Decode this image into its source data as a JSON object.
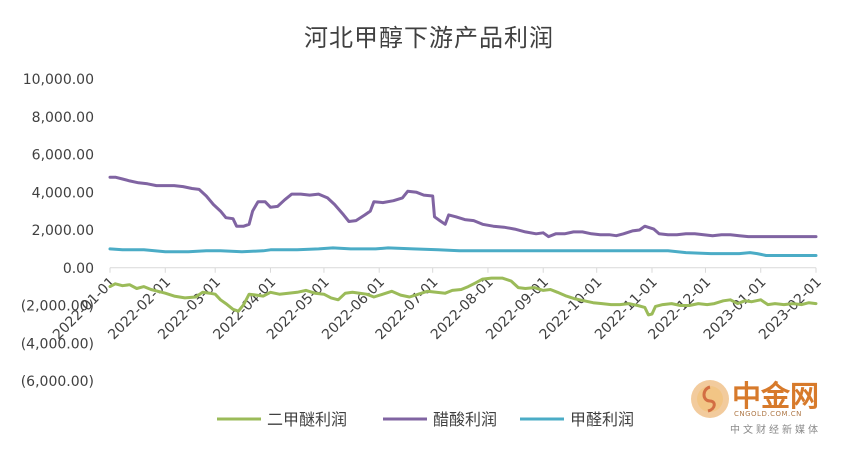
{
  "chart_data": {
    "type": "line",
    "title": "河北甲醇下游产品利润",
    "xlabel": "",
    "ylabel": "",
    "ylim": [
      -6000,
      10000
    ],
    "yticks": [
      10000,
      8000,
      6000,
      4000,
      2000,
      0,
      -2000,
      -4000,
      -6000
    ],
    "ytick_labels": [
      "10,000.00",
      "8,000.00",
      "6,000.00",
      "4,000.00",
      "2,000.00",
      "0.00",
      "(2,000.00)",
      "(4,000.00)",
      "(6,000.00)"
    ],
    "xlim": [
      "2022-01-01",
      "2023-02-01"
    ],
    "xtick_labels": [
      "2022-01-01",
      "2022-02-01",
      "2022-03-01",
      "2022-04-01",
      "2022-05-01",
      "2022-06-01",
      "2022-07-01",
      "2022-08-01",
      "2022-09-01",
      "2022-10-01",
      "2022-11-01",
      "2022-12-01",
      "2023-01-01",
      "2023-02-01"
    ],
    "grid": false,
    "legend": "bottom",
    "series": [
      {
        "name": "二甲醚利润",
        "color": "#9bbb59",
        "points": [
          [
            "2022-01-01",
            -1000
          ],
          [
            "2022-01-04",
            -850
          ],
          [
            "2022-01-08",
            -950
          ],
          [
            "2022-01-12",
            -900
          ],
          [
            "2022-01-16",
            -1100
          ],
          [
            "2022-01-20",
            -1000
          ],
          [
            "2022-01-24",
            -1150
          ],
          [
            "2022-01-28",
            -1250
          ],
          [
            "2022-02-01",
            -1350
          ],
          [
            "2022-02-06",
            -1500
          ],
          [
            "2022-02-12",
            -1600
          ],
          [
            "2022-02-18",
            -1550
          ],
          [
            "2022-02-22",
            -1300
          ],
          [
            "2022-02-26",
            -1350
          ],
          [
            "2022-03-01",
            -1400
          ],
          [
            "2022-03-04",
            -1700
          ],
          [
            "2022-03-07",
            -1900
          ],
          [
            "2022-03-11",
            -2200
          ],
          [
            "2022-03-14",
            -2300
          ],
          [
            "2022-03-17",
            -1950
          ],
          [
            "2022-03-20",
            -1400
          ],
          [
            "2022-03-24",
            -1450
          ],
          [
            "2022-03-28",
            -1500
          ],
          [
            "2022-04-01",
            -1300
          ],
          [
            "2022-04-06",
            -1400
          ],
          [
            "2022-04-11",
            -1350
          ],
          [
            "2022-04-16",
            -1300
          ],
          [
            "2022-04-21",
            -1200
          ],
          [
            "2022-04-26",
            -1350
          ],
          [
            "2022-05-01",
            -1400
          ],
          [
            "2022-05-05",
            -1600
          ],
          [
            "2022-05-09",
            -1700
          ],
          [
            "2022-05-13",
            -1350
          ],
          [
            "2022-05-17",
            -1300
          ],
          [
            "2022-05-21",
            -1350
          ],
          [
            "2022-05-25",
            -1400
          ],
          [
            "2022-05-29",
            -1550
          ],
          [
            "2022-06-03",
            -1400
          ],
          [
            "2022-06-08",
            -1250
          ],
          [
            "2022-06-13",
            -1450
          ],
          [
            "2022-06-18",
            -1550
          ],
          [
            "2022-06-23",
            -1400
          ],
          [
            "2022-06-28",
            -1250
          ],
          [
            "2022-07-03",
            -1300
          ],
          [
            "2022-07-08",
            -1350
          ],
          [
            "2022-07-12",
            -1200
          ],
          [
            "2022-07-17",
            -1150
          ],
          [
            "2022-07-21",
            -1000
          ],
          [
            "2022-07-25",
            -800
          ],
          [
            "2022-07-29",
            -600
          ],
          [
            "2022-08-03",
            -550
          ],
          [
            "2022-08-09",
            -550
          ],
          [
            "2022-08-14",
            -700
          ],
          [
            "2022-08-18",
            -1050
          ],
          [
            "2022-08-22",
            -1100
          ],
          [
            "2022-08-27",
            -1050
          ],
          [
            "2022-09-01",
            -1200
          ],
          [
            "2022-09-05",
            -1150
          ],
          [
            "2022-09-09",
            -1300
          ],
          [
            "2022-09-14",
            -1500
          ],
          [
            "2022-09-19",
            -1650
          ],
          [
            "2022-09-24",
            -1750
          ],
          [
            "2022-09-29",
            -1850
          ],
          [
            "2022-10-04",
            -1900
          ],
          [
            "2022-10-09",
            -1950
          ],
          [
            "2022-10-14",
            -1950
          ],
          [
            "2022-10-19",
            -1900
          ],
          [
            "2022-10-24",
            -2000
          ],
          [
            "2022-10-28",
            -2100
          ],
          [
            "2022-10-30",
            -2500
          ],
          [
            "2022-11-01",
            -2450
          ],
          [
            "2022-11-03",
            -2050
          ],
          [
            "2022-11-07",
            -1950
          ],
          [
            "2022-11-12",
            -1900
          ],
          [
            "2022-11-17",
            -2000
          ],
          [
            "2022-11-22",
            -2000
          ],
          [
            "2022-11-27",
            -1900
          ],
          [
            "2022-12-02",
            -1950
          ],
          [
            "2022-12-06",
            -1900
          ],
          [
            "2022-12-11",
            -1750
          ],
          [
            "2022-12-15",
            -1700
          ],
          [
            "2022-12-19",
            -1900
          ],
          [
            "2022-12-23",
            -1750
          ],
          [
            "2022-12-27",
            -1800
          ],
          [
            "2023-01-01",
            -1700
          ],
          [
            "2023-01-05",
            -1950
          ],
          [
            "2023-01-09",
            -1900
          ],
          [
            "2023-01-14",
            -1950
          ],
          [
            "2023-01-19",
            -1900
          ],
          [
            "2023-01-24",
            -1950
          ],
          [
            "2023-01-28",
            -1850
          ],
          [
            "2023-02-01",
            -1900
          ]
        ]
      },
      {
        "name": "醋酸利润",
        "color": "#8064a2",
        "points": [
          [
            "2022-01-01",
            4800
          ],
          [
            "2022-01-04",
            4800
          ],
          [
            "2022-01-08",
            4700
          ],
          [
            "2022-01-12",
            4600
          ],
          [
            "2022-01-17",
            4500
          ],
          [
            "2022-01-22",
            4450
          ],
          [
            "2022-01-27",
            4350
          ],
          [
            "2022-02-01",
            4350
          ],
          [
            "2022-02-06",
            4350
          ],
          [
            "2022-02-11",
            4300
          ],
          [
            "2022-02-16",
            4200
          ],
          [
            "2022-02-20",
            4150
          ],
          [
            "2022-02-24",
            3800
          ],
          [
            "2022-02-28",
            3350
          ],
          [
            "2022-03-04",
            3000
          ],
          [
            "2022-03-07",
            2650
          ],
          [
            "2022-03-11",
            2600
          ],
          [
            "2022-03-13",
            2200
          ],
          [
            "2022-03-17",
            2200
          ],
          [
            "2022-03-20",
            2300
          ],
          [
            "2022-03-22",
            3000
          ],
          [
            "2022-03-25",
            3500
          ],
          [
            "2022-03-29",
            3500
          ],
          [
            "2022-04-01",
            3200
          ],
          [
            "2022-04-05",
            3250
          ],
          [
            "2022-04-09",
            3600
          ],
          [
            "2022-04-13",
            3900
          ],
          [
            "2022-04-18",
            3900
          ],
          [
            "2022-04-23",
            3850
          ],
          [
            "2022-04-28",
            3900
          ],
          [
            "2022-05-03",
            3700
          ],
          [
            "2022-05-07",
            3350
          ],
          [
            "2022-05-12",
            2800
          ],
          [
            "2022-05-15",
            2450
          ],
          [
            "2022-05-19",
            2500
          ],
          [
            "2022-05-24",
            2800
          ],
          [
            "2022-05-27",
            3000
          ],
          [
            "2022-05-29",
            3500
          ],
          [
            "2022-06-03",
            3450
          ],
          [
            "2022-06-09",
            3550
          ],
          [
            "2022-06-14",
            3700
          ],
          [
            "2022-06-17",
            4050
          ],
          [
            "2022-06-22",
            4000
          ],
          [
            "2022-06-26",
            3850
          ],
          [
            "2022-07-01",
            3800
          ],
          [
            "2022-07-02",
            2700
          ],
          [
            "2022-07-05",
            2500
          ],
          [
            "2022-07-08",
            2300
          ],
          [
            "2022-07-10",
            2800
          ],
          [
            "2022-07-14",
            2700
          ],
          [
            "2022-07-19",
            2550
          ],
          [
            "2022-07-24",
            2500
          ],
          [
            "2022-07-29",
            2300
          ],
          [
            "2022-08-04",
            2200
          ],
          [
            "2022-08-10",
            2150
          ],
          [
            "2022-08-16",
            2050
          ],
          [
            "2022-08-22",
            1900
          ],
          [
            "2022-08-28",
            1800
          ],
          [
            "2022-09-01",
            1850
          ],
          [
            "2022-09-04",
            1650
          ],
          [
            "2022-09-08",
            1800
          ],
          [
            "2022-09-13",
            1800
          ],
          [
            "2022-09-18",
            1900
          ],
          [
            "2022-09-23",
            1900
          ],
          [
            "2022-09-28",
            1800
          ],
          [
            "2022-10-03",
            1750
          ],
          [
            "2022-10-08",
            1750
          ],
          [
            "2022-10-12",
            1700
          ],
          [
            "2022-10-16",
            1800
          ],
          [
            "2022-10-21",
            1950
          ],
          [
            "2022-10-25",
            2000
          ],
          [
            "2022-10-28",
            2200
          ],
          [
            "2022-11-02",
            2050
          ],
          [
            "2022-11-05",
            1800
          ],
          [
            "2022-11-10",
            1750
          ],
          [
            "2022-11-15",
            1750
          ],
          [
            "2022-11-20",
            1800
          ],
          [
            "2022-11-25",
            1800
          ],
          [
            "2022-11-30",
            1750
          ],
          [
            "2022-12-05",
            1700
          ],
          [
            "2022-12-10",
            1750
          ],
          [
            "2022-12-15",
            1750
          ],
          [
            "2022-12-20",
            1700
          ],
          [
            "2022-12-25",
            1650
          ],
          [
            "2022-12-30",
            1650
          ],
          [
            "2023-01-08",
            1650
          ],
          [
            "2023-01-16",
            1650
          ],
          [
            "2023-01-24",
            1650
          ],
          [
            "2023-02-01",
            1650
          ]
        ]
      },
      {
        "name": "甲醛利润",
        "color": "#4bacc6",
        "points": [
          [
            "2022-01-01",
            1000
          ],
          [
            "2022-01-08",
            950
          ],
          [
            "2022-01-20",
            950
          ],
          [
            "2022-02-01",
            850
          ],
          [
            "2022-02-14",
            850
          ],
          [
            "2022-02-24",
            900
          ],
          [
            "2022-03-04",
            900
          ],
          [
            "2022-03-16",
            850
          ],
          [
            "2022-03-28",
            900
          ],
          [
            "2022-04-01",
            950
          ],
          [
            "2022-04-16",
            950
          ],
          [
            "2022-04-28",
            1000
          ],
          [
            "2022-05-06",
            1050
          ],
          [
            "2022-05-16",
            1000
          ],
          [
            "2022-05-30",
            1000
          ],
          [
            "2022-06-06",
            1050
          ],
          [
            "2022-06-20",
            1000
          ],
          [
            "2022-07-04",
            950
          ],
          [
            "2022-07-16",
            900
          ],
          [
            "2022-08-01",
            900
          ],
          [
            "2022-08-20",
            900
          ],
          [
            "2022-09-06",
            900
          ],
          [
            "2022-09-24",
            900
          ],
          [
            "2022-10-10",
            900
          ],
          [
            "2022-10-26",
            900
          ],
          [
            "2022-11-10",
            900
          ],
          [
            "2022-11-20",
            800
          ],
          [
            "2022-12-04",
            750
          ],
          [
            "2022-12-20",
            750
          ],
          [
            "2022-12-26",
            800
          ],
          [
            "2022-12-30",
            750
          ],
          [
            "2023-01-04",
            650
          ],
          [
            "2023-01-16",
            650
          ],
          [
            "2023-02-01",
            650
          ]
        ]
      }
    ]
  },
  "watermark": {
    "brand": "中金网",
    "domain": "CNGOLD.COM.CN",
    "tagline": "中文财经新媒体",
    "logo_icon": "coin-swirl-logo"
  }
}
